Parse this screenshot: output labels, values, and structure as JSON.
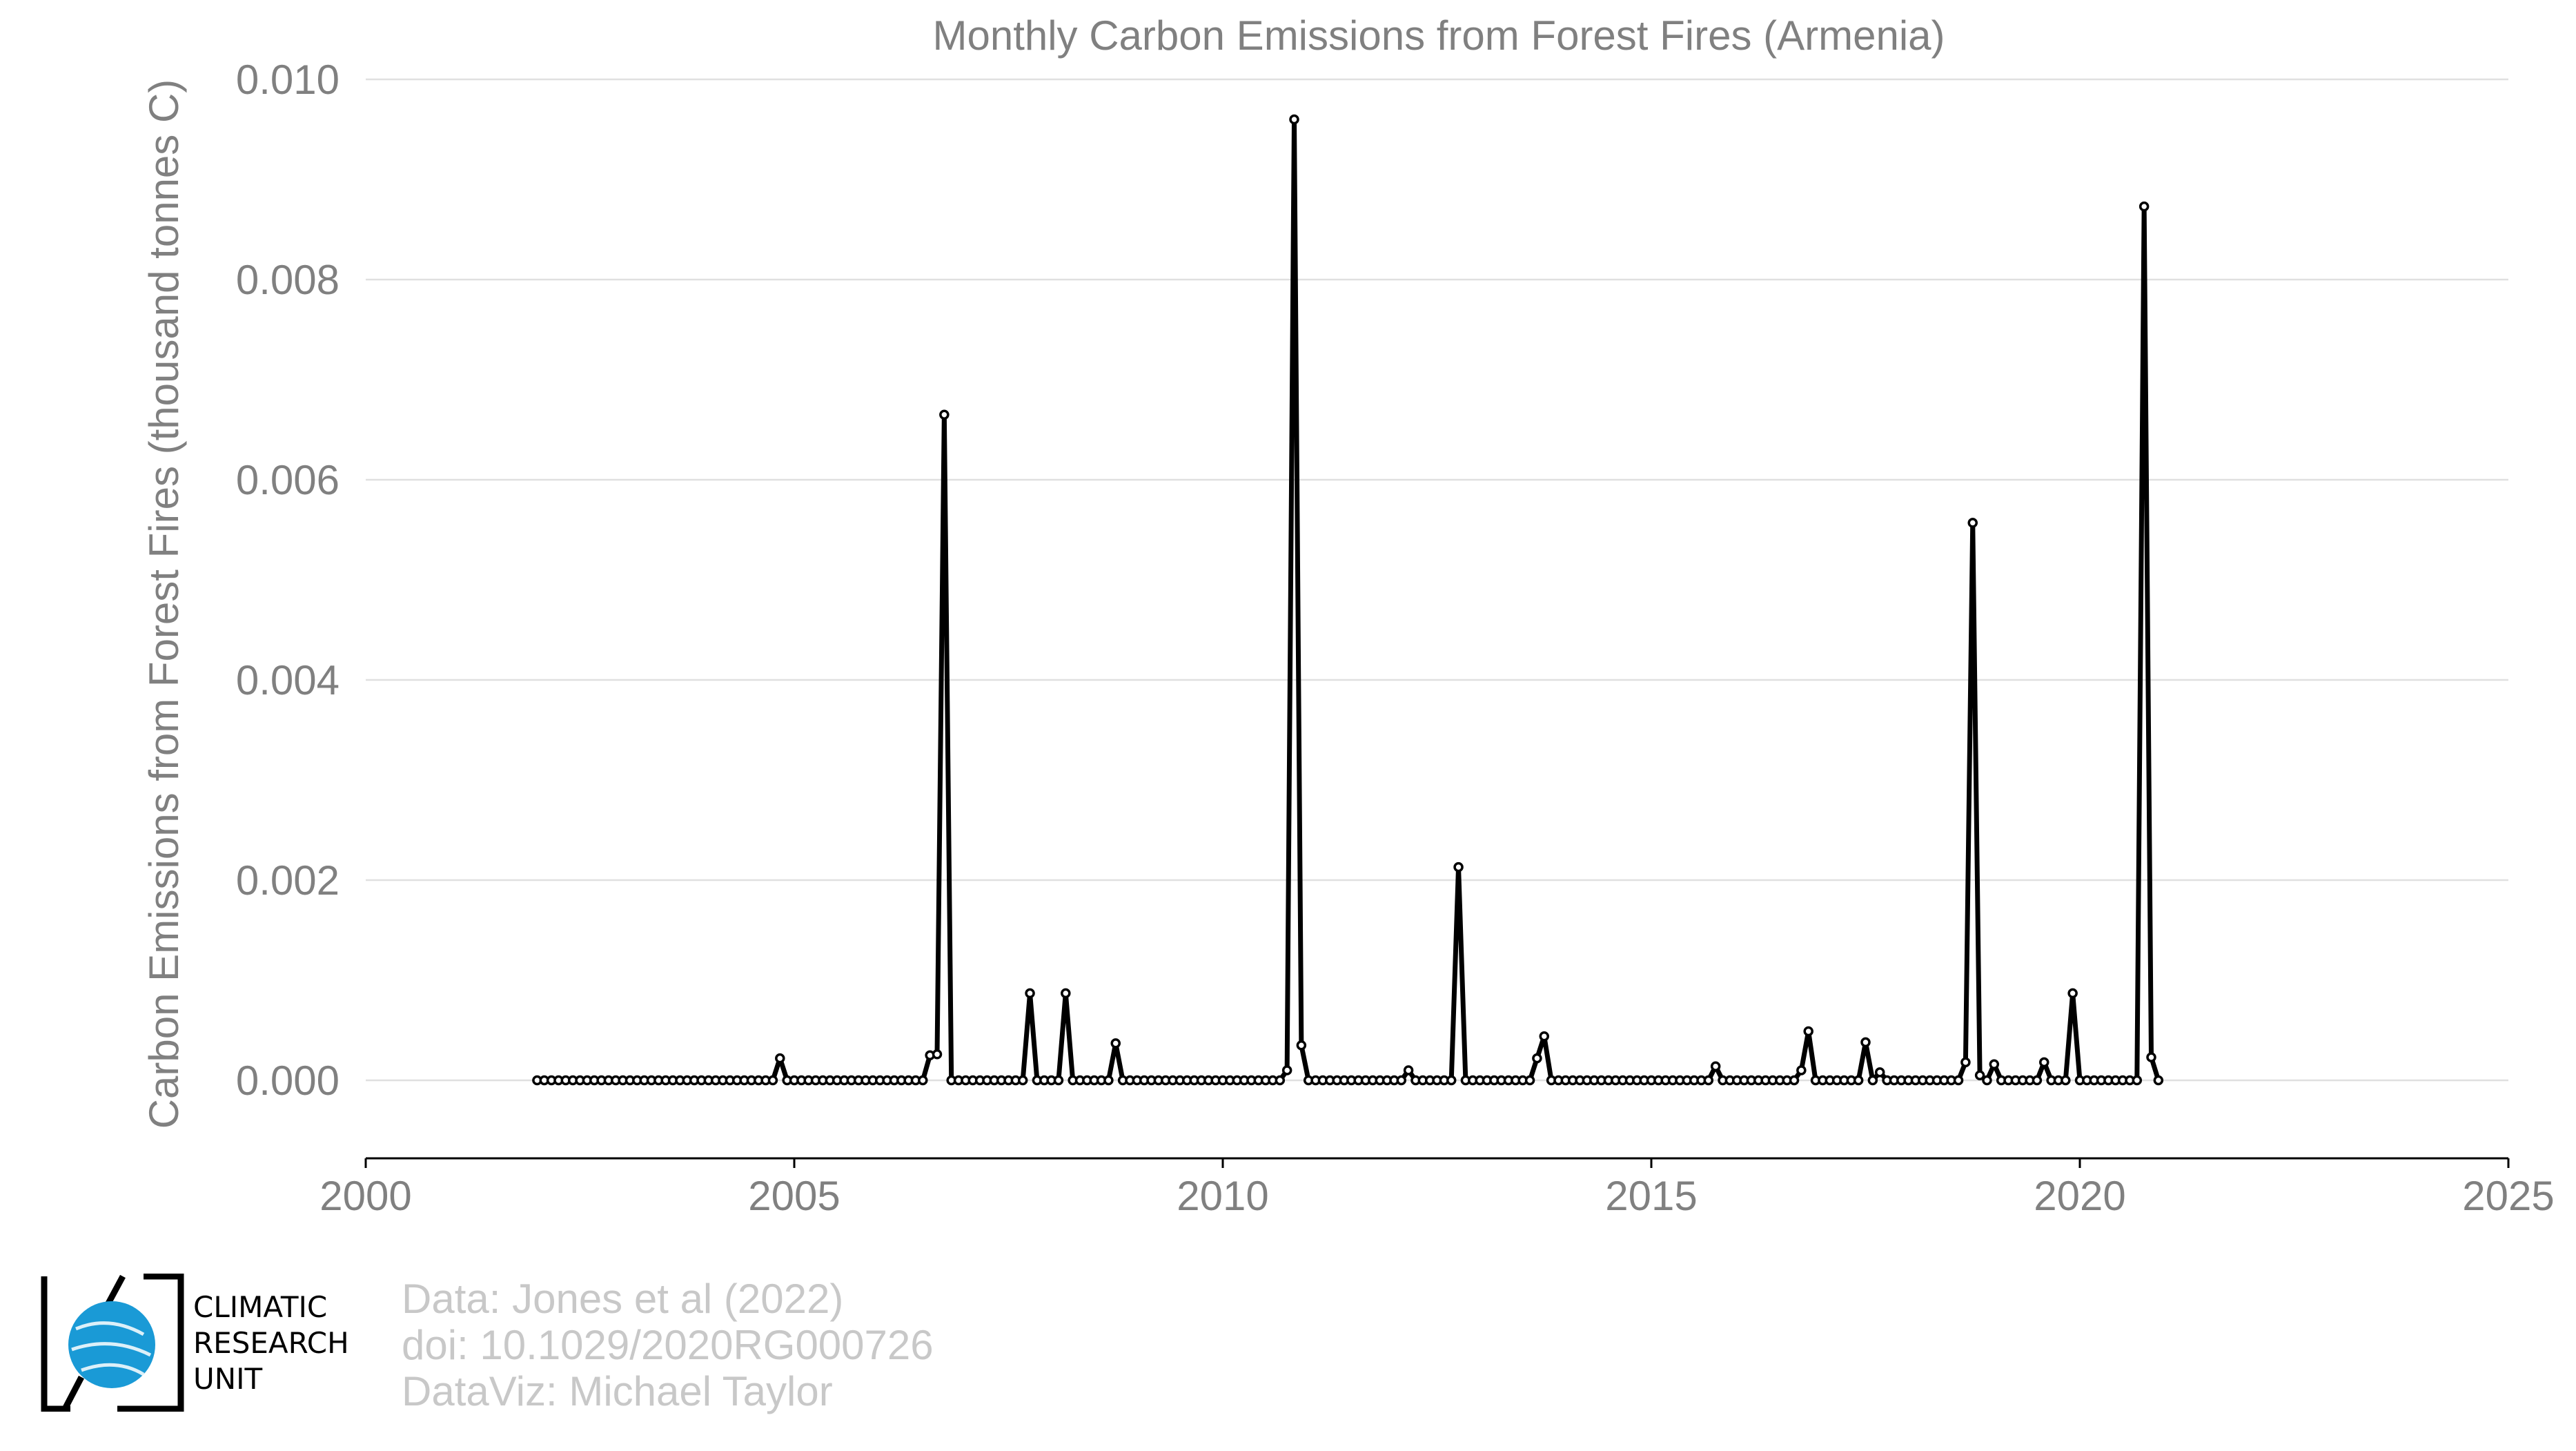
{
  "chart_data": {
    "type": "line",
    "title": "Monthly Carbon Emissions from Forest Fires (Armenia)",
    "xlabel": "",
    "ylabel": "Carbon Emissions from Forest Fires (thousand tonnes C)",
    "xlim": [
      2000,
      2025
    ],
    "ylim": [
      -0.00075,
      0.01
    ],
    "x_ticks": [
      2000,
      2005,
      2010,
      2015,
      2020,
      2025
    ],
    "x_tick_labels": [
      "2000",
      "2005",
      "2010",
      "2015",
      "2020",
      "2025"
    ],
    "y_ticks": [
      0,
      0.002,
      0.004,
      0.006,
      0.008,
      0.01
    ],
    "y_tick_labels": [
      "0.000",
      "0.002",
      "0.004",
      "0.006",
      "0.008",
      "0.010"
    ],
    "grid": "horizontal",
    "legend": "none",
    "series": [
      {
        "start": "2002-01",
        "frequency": "monthly",
        "color": "#000000",
        "marker": "open-circle",
        "values": [
          0,
          0,
          0,
          0,
          0,
          0,
          0,
          0,
          0,
          0,
          0,
          0,
          0,
          0,
          0,
          0,
          0,
          0,
          0,
          0,
          0,
          0,
          0,
          0,
          0,
          0,
          0,
          0,
          0,
          0,
          0,
          0,
          0,
          0,
          0.00022,
          0,
          0,
          0,
          0,
          0,
          0,
          0,
          0,
          0,
          0,
          0,
          0,
          0,
          0,
          0,
          0,
          0,
          0,
          0,
          0,
          0.00025,
          0.00026,
          0.00665,
          0,
          0,
          0,
          0,
          0,
          0,
          0,
          0,
          0,
          0,
          0,
          0.00087,
          0,
          0,
          0,
          0,
          0.00087,
          0,
          0,
          0,
          0,
          0,
          0,
          0.00037,
          0,
          0,
          0,
          0,
          0,
          0,
          0,
          0,
          0,
          0,
          0,
          0,
          0,
          0,
          0,
          0,
          0,
          0,
          0,
          0,
          0,
          0,
          0,
          0.0001,
          0.0096,
          0.00035,
          0,
          0,
          0,
          0,
          0,
          0,
          0,
          0,
          0,
          0,
          0,
          0,
          0,
          0,
          0.0001,
          0,
          0,
          0,
          0,
          0,
          0,
          0.00213,
          0,
          0,
          0,
          0,
          0,
          0,
          0,
          0,
          0,
          0,
          0.00022,
          0.00044,
          0,
          0,
          0,
          0,
          0,
          0,
          0,
          0,
          0,
          0,
          0,
          0,
          0,
          0,
          0,
          0,
          0,
          0,
          0,
          0,
          0,
          0,
          0,
          0.00014,
          0,
          0,
          0,
          0,
          0,
          0,
          0,
          0,
          0,
          0,
          0,
          0.0001,
          0.00049,
          0,
          0,
          0,
          0,
          0,
          0,
          0,
          0.00038,
          0,
          8e-05,
          0,
          0,
          0,
          0,
          0,
          0,
          0,
          0,
          0,
          0,
          0,
          0.00018,
          0.00557,
          5e-05,
          0,
          0.00016,
          0,
          0,
          0,
          0,
          0,
          0,
          0.00018,
          0,
          0,
          0,
          0.00087,
          0,
          0,
          0,
          0,
          0,
          0,
          0,
          0,
          0,
          0.00873,
          0.00023,
          0
        ]
      }
    ]
  },
  "credits": {
    "line1": "Data: Jones et al (2022)",
    "line2": "doi: 10.1029/2020RG000726",
    "line3": "DataViz: Michael Taylor"
  },
  "logo": {
    "line1": "CLIMATIC",
    "line2": "RESEARCH",
    "line3": "UNIT",
    "globe_color": "#1a9ad6"
  }
}
